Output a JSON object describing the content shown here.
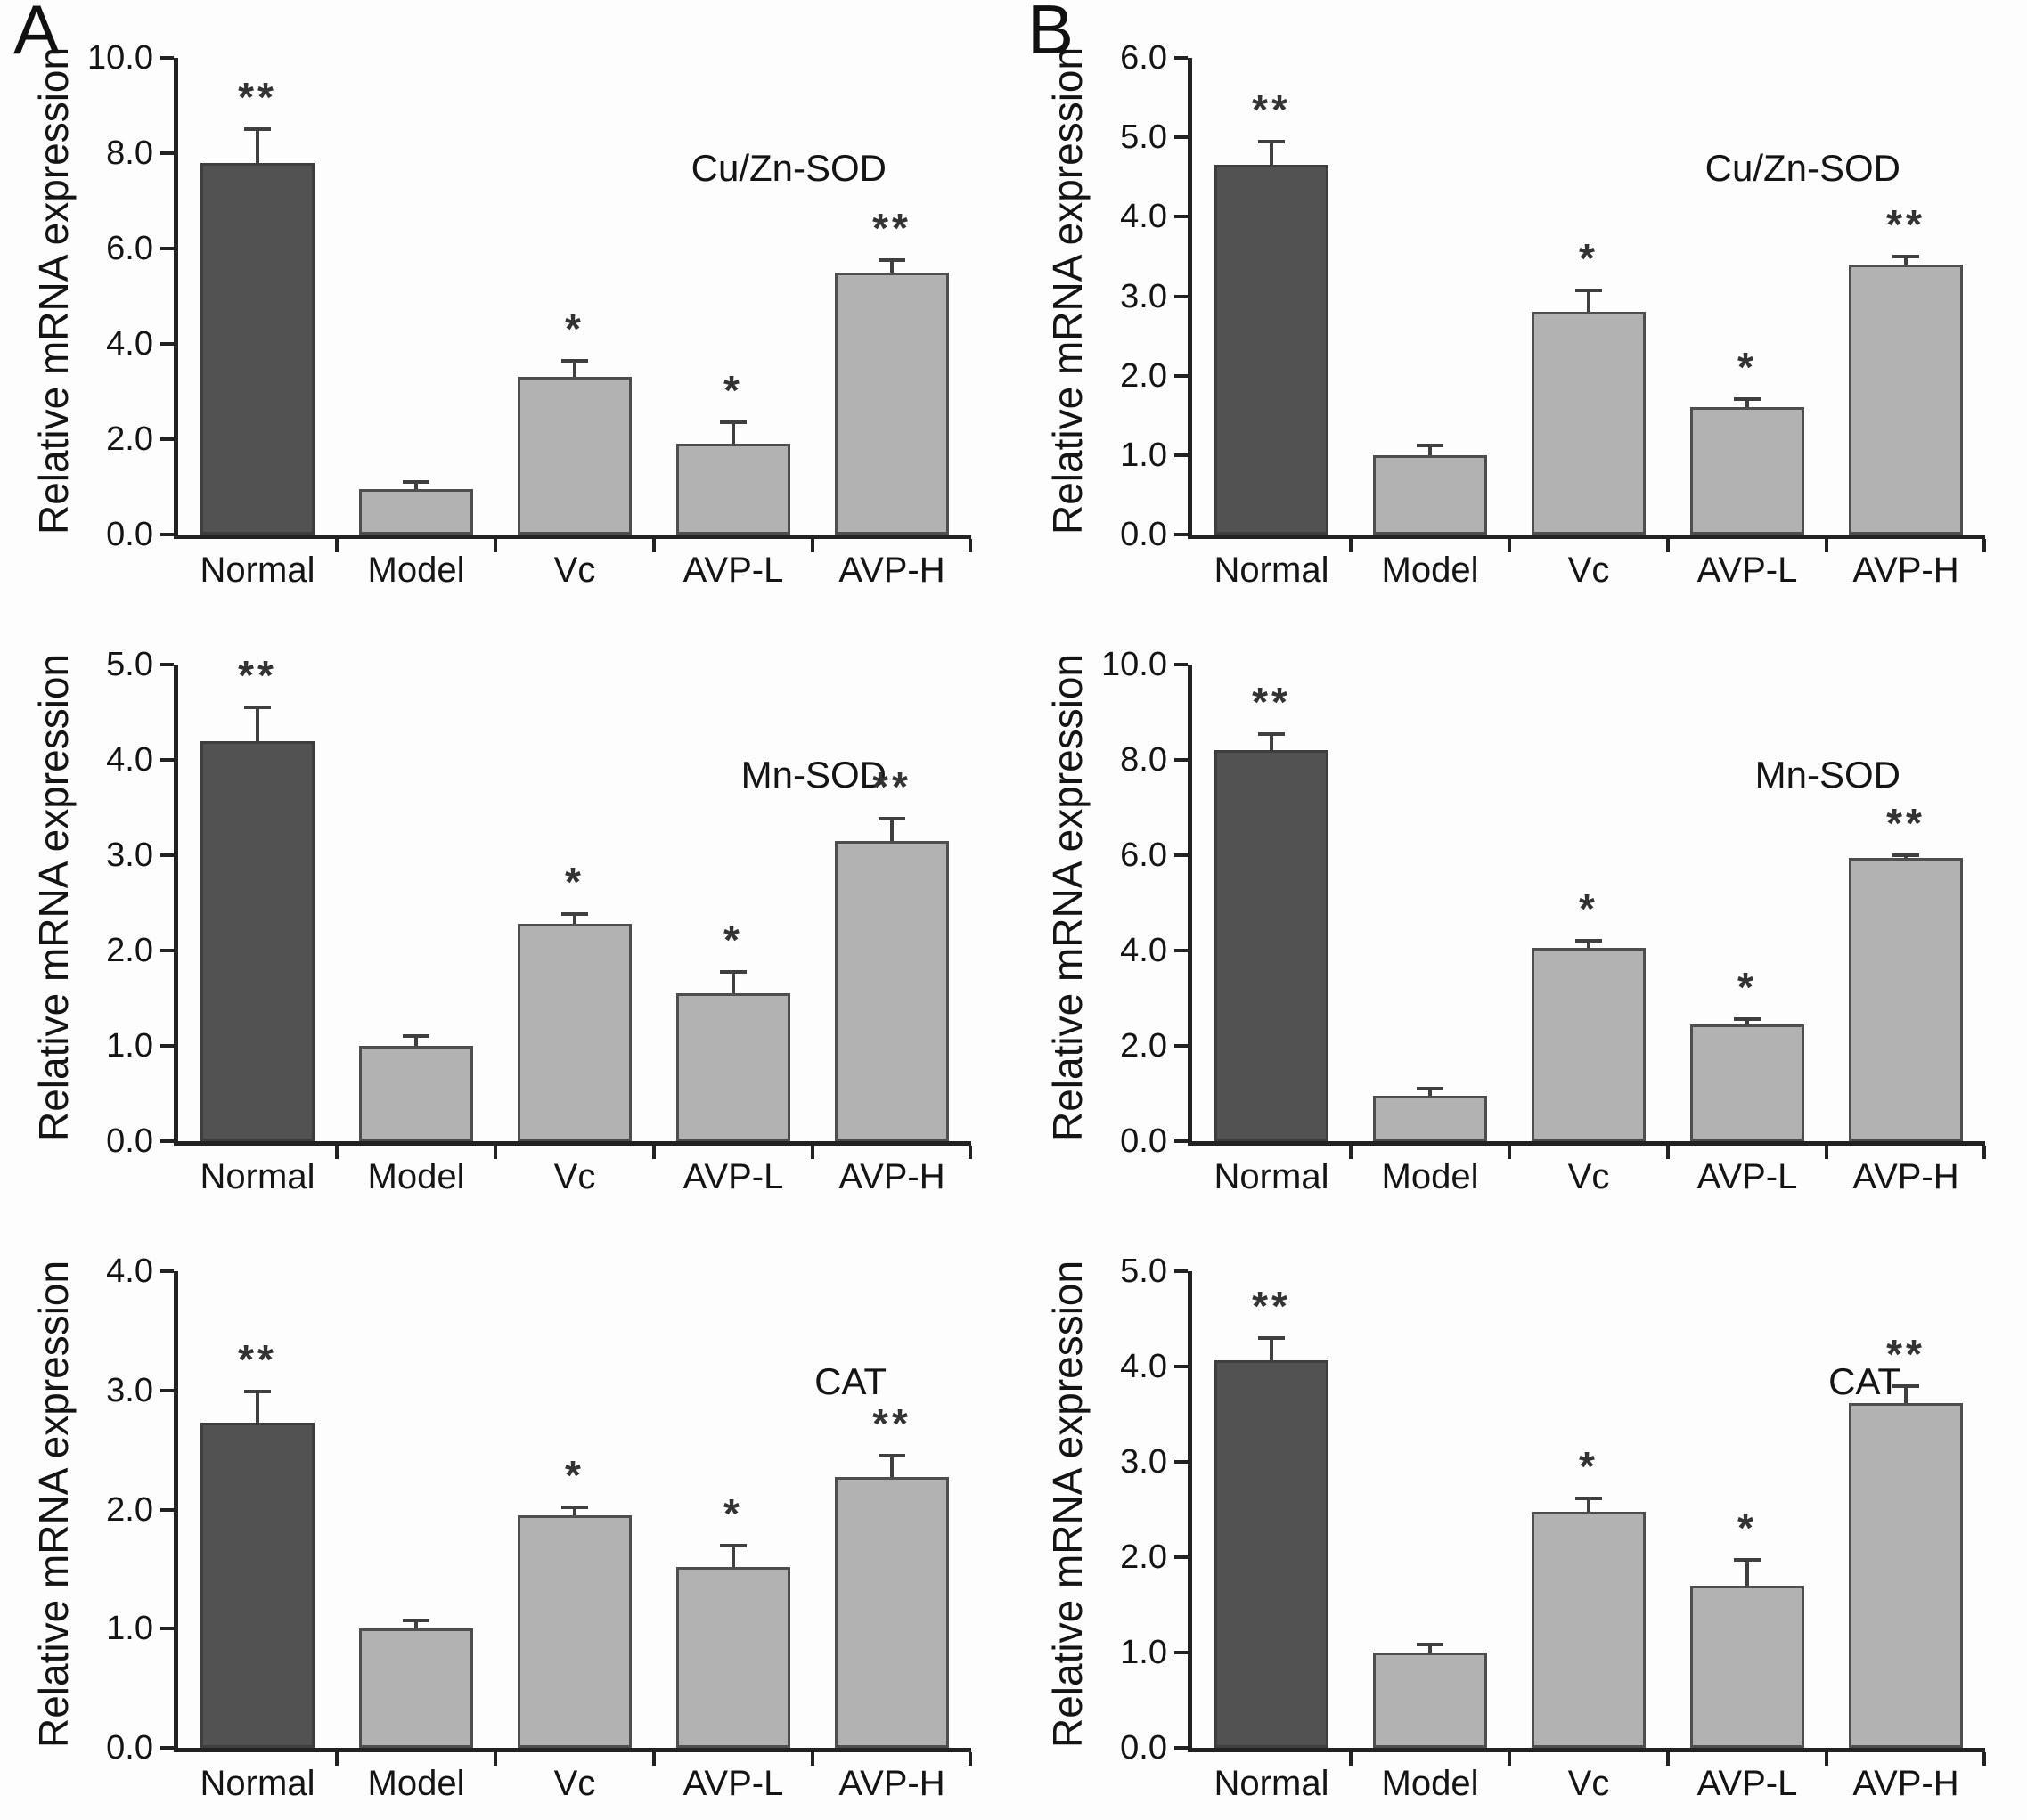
{
  "figure": {
    "background_color": "#fdfdfd",
    "bar_dark_color": "#525252",
    "bar_light_color": "#b2b2b2",
    "axis_color": "#222222",
    "text_color": "#141414",
    "panel_labels": [
      "A",
      "B"
    ]
  },
  "chart_data": [
    {
      "type": "bar",
      "panel": "A",
      "title": "Cu/Zn-SOD",
      "ylabel": "Relative mRNA expression",
      "xlabel": "",
      "categories": [
        "Normal",
        "Model",
        "Vc",
        "AVP-L",
        "AVP-H"
      ],
      "values": [
        7.8,
        0.95,
        3.3,
        1.9,
        5.5
      ],
      "errors": [
        0.7,
        0.15,
        0.35,
        0.45,
        0.25
      ],
      "significance": [
        "**",
        "",
        "*",
        "*",
        "**"
      ],
      "bar_styles": [
        "dark",
        "light",
        "light",
        "light",
        "light"
      ],
      "ylim": [
        0,
        10
      ],
      "ytick_step": 2,
      "ytick_labels": [
        "0.0",
        "2.0",
        "4.0",
        "6.0",
        "8.0",
        "10.0"
      ],
      "grid": false,
      "legend": "none"
    },
    {
      "type": "bar",
      "panel": "B",
      "title": "Cu/Zn-SOD",
      "ylabel": "Relative mRNA expression",
      "xlabel": "",
      "categories": [
        "Normal",
        "Model",
        "Vc",
        "AVP-L",
        "AVP-H"
      ],
      "values": [
        4.65,
        1.0,
        2.8,
        1.6,
        3.4
      ],
      "errors": [
        0.3,
        0.12,
        0.27,
        0.1,
        0.1
      ],
      "significance": [
        "**",
        "",
        "*",
        "*",
        "**"
      ],
      "bar_styles": [
        "dark",
        "light",
        "light",
        "light",
        "light"
      ],
      "ylim": [
        0,
        6
      ],
      "ytick_step": 1,
      "ytick_labels": [
        "0.0",
        "1.0",
        "2.0",
        "3.0",
        "4.0",
        "5.0",
        "6.0"
      ],
      "grid": false,
      "legend": "none"
    },
    {
      "type": "bar",
      "panel": "",
      "title": "Mn-SOD",
      "ylabel": "Relative mRNA expression",
      "xlabel": "",
      "categories": [
        "Normal",
        "Model",
        "Vc",
        "AVP-L",
        "AVP-H"
      ],
      "values": [
        4.2,
        1.0,
        2.28,
        1.55,
        3.15
      ],
      "errors": [
        0.35,
        0.1,
        0.1,
        0.23,
        0.23
      ],
      "significance": [
        "**",
        "",
        "*",
        "*",
        "**"
      ],
      "bar_styles": [
        "dark",
        "light",
        "light",
        "light",
        "light"
      ],
      "ylim": [
        0,
        5
      ],
      "ytick_step": 1,
      "ytick_labels": [
        "0.0",
        "1.0",
        "2.0",
        "3.0",
        "4.0",
        "5.0"
      ],
      "grid": false,
      "legend": "none"
    },
    {
      "type": "bar",
      "panel": "",
      "title": "Mn-SOD",
      "ylabel": "Relative mRNA expression",
      "xlabel": "",
      "categories": [
        "Normal",
        "Model",
        "Vc",
        "AVP-L",
        "AVP-H"
      ],
      "values": [
        8.2,
        0.95,
        4.05,
        2.45,
        5.95
      ],
      "errors": [
        0.35,
        0.15,
        0.15,
        0.12,
        0.05
      ],
      "significance": [
        "**",
        "",
        "*",
        "*",
        "**"
      ],
      "bar_styles": [
        "dark",
        "light",
        "light",
        "light",
        "light"
      ],
      "ylim": [
        0,
        10
      ],
      "ytick_step": 2,
      "ytick_labels": [
        "0.0",
        "2.0",
        "4.0",
        "6.0",
        "8.0",
        "10.0"
      ],
      "grid": false,
      "legend": "none"
    },
    {
      "type": "bar",
      "panel": "",
      "title": "CAT",
      "ylabel": "Relative mRNA expression",
      "xlabel": "",
      "categories": [
        "Normal",
        "Model",
        "Vc",
        "AVP-L",
        "AVP-H"
      ],
      "values": [
        2.73,
        1.0,
        1.95,
        1.52,
        2.27
      ],
      "errors": [
        0.26,
        0.07,
        0.07,
        0.18,
        0.18
      ],
      "significance": [
        "**",
        "",
        "*",
        "*",
        "**"
      ],
      "bar_styles": [
        "dark",
        "light",
        "light",
        "light",
        "light"
      ],
      "ylim": [
        0,
        4
      ],
      "ytick_step": 1,
      "ytick_labels": [
        "0.0",
        "1.0",
        "2.0",
        "3.0",
        "4.0"
      ],
      "grid": false,
      "legend": "none"
    },
    {
      "type": "bar",
      "panel": "",
      "title": "CAT",
      "ylabel": "Relative mRNA expression",
      "xlabel": "",
      "categories": [
        "Normal",
        "Model",
        "Vc",
        "AVP-L",
        "AVP-H"
      ],
      "values": [
        4.07,
        1.0,
        2.48,
        1.7,
        3.62
      ],
      "errors": [
        0.23,
        0.08,
        0.14,
        0.27,
        0.17
      ],
      "significance": [
        "**",
        "",
        "*",
        "*",
        "**"
      ],
      "bar_styles": [
        "dark",
        "light",
        "light",
        "light",
        "light"
      ],
      "ylim": [
        0,
        5
      ],
      "ytick_step": 1,
      "ytick_labels": [
        "0.0",
        "1.0",
        "2.0",
        "3.0",
        "4.0",
        "5.0"
      ],
      "grid": false,
      "legend": "none"
    }
  ]
}
